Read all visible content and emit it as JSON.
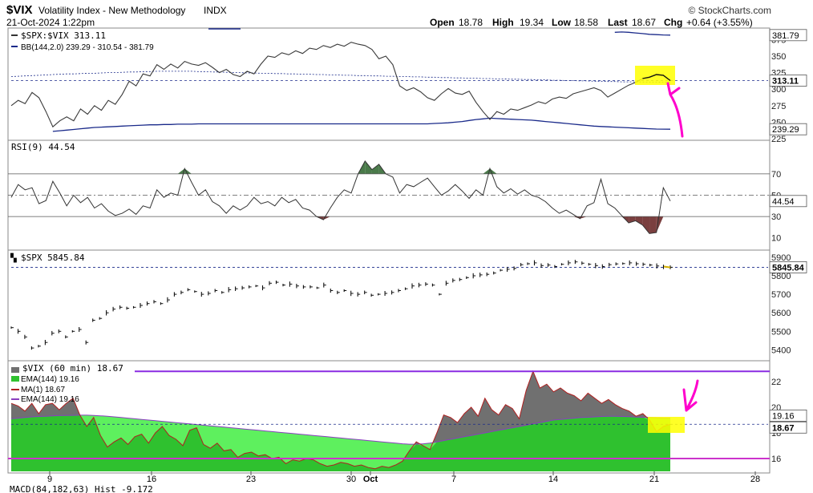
{
  "header": {
    "symbol": "$VIX",
    "name": "Volatility Index - New Methodology",
    "exchange": "INDX",
    "date": "21-Oct-2024 1:22pm",
    "brand": "© StockCharts.com",
    "quote": {
      "open_label": "Open",
      "open": "18.78",
      "high_label": "High",
      "high": "19.34",
      "low_label": "Low",
      "low": "18.58",
      "last_label": "Last",
      "last": "18.67",
      "chg_label": "Chg",
      "chg": "+0.64 (+3.55%)"
    }
  },
  "colors": {
    "ratio_line": "#3a3a3a",
    "bb_band": "#1a2a8a",
    "rsi_line": "#333333",
    "rsi_over": "#4a7a4a",
    "rsi_under": "#7a3f3f",
    "spx_bar": "#111111",
    "vix_area": "#707070",
    "ema_green": "#2fc12f",
    "ma_red": "#b02020",
    "ema_purple": "#8a3fbf",
    "h_purple": "#8a2be2",
    "h_magenta": "#cc33cc",
    "highlight": "#ffff00",
    "arrow": "#ff00cc"
  },
  "chart_data": [
    {
      "type": "line",
      "panel": "ratio",
      "legend": [
        "$SPX:$VIX 313.11",
        "BB(144,2.0) 239.29 - 310.54 - 381.79"
      ],
      "ylim": [
        225,
        390
      ],
      "y_ticks": [
        "375",
        "350",
        "325",
        "300",
        "275",
        "250",
        "225"
      ],
      "tags": [
        "381.79",
        "313.11",
        "239.29"
      ],
      "series": [
        {
          "name": "$SPX:$VIX",
          "values": [
            275,
            283,
            278,
            295,
            287,
            266,
            243,
            252,
            258,
            252,
            270,
            262,
            275,
            268,
            283,
            277,
            292,
            312,
            305,
            323,
            320,
            337,
            330,
            338,
            332,
            342,
            338,
            336,
            340,
            333,
            325,
            330,
            322,
            319,
            327,
            323,
            338,
            350,
            348,
            355,
            352,
            358,
            354,
            362,
            360,
            366,
            363,
            368,
            365,
            371,
            368,
            366,
            360,
            346,
            350,
            337,
            305,
            298,
            302,
            296,
            287,
            283,
            293,
            301,
            294,
            292,
            297,
            280,
            266,
            254,
            266,
            262,
            270,
            268,
            272,
            276,
            281,
            278,
            285,
            288,
            286,
            293,
            296,
            299,
            302,
            298,
            288,
            294,
            300,
            306,
            310,
            316,
            318,
            322,
            321,
            313
          ]
        },
        {
          "name": "BB upper",
          "values": [
            null,
            null,
            null,
            null,
            null,
            null,
            null,
            null,
            null,
            null,
            null,
            null,
            null,
            null,
            null,
            null,
            null,
            null,
            null,
            null,
            null,
            null,
            null,
            null,
            null,
            null,
            null,
            null,
            null,
            null,
            null,
            null,
            null,
            null,
            null,
            null,
            null,
            null,
            null,
            null,
            null,
            null,
            null,
            null,
            null,
            null,
            null,
            null,
            null,
            null,
            null,
            null,
            null,
            null,
            null,
            null,
            null,
            null,
            null,
            null,
            null,
            null,
            null,
            null,
            null,
            null,
            null,
            null,
            null,
            null,
            null,
            null,
            null,
            null,
            null,
            null,
            null,
            null,
            null,
            null,
            null,
            null,
            null,
            null,
            null,
            null,
            null,
            386,
            386.5,
            386,
            385,
            384,
            383,
            382.5,
            382,
            381.79
          ]
        },
        {
          "name": "BB middle",
          "values": [
            319,
            319.5,
            320,
            320.5,
            321,
            321.5,
            322,
            322.5,
            323,
            323,
            323.5,
            324,
            324,
            324.5,
            325,
            325,
            325.5,
            326,
            326,
            326.5,
            326.5,
            327,
            327,
            327,
            327,
            327,
            327,
            326.5,
            326.5,
            326,
            326,
            325.5,
            325,
            325,
            324.5,
            324.5,
            324,
            324,
            323.5,
            323.5,
            323,
            323,
            322.5,
            322.5,
            322,
            322,
            321.5,
            321.5,
            321,
            321,
            320.5,
            320.5,
            320,
            320,
            319.5,
            319.5,
            319,
            319,
            318.5,
            318.5,
            318,
            318,
            317.5,
            317.5,
            317,
            317,
            316.5,
            316.5,
            316,
            316,
            315.5,
            315.5,
            315,
            315,
            314.5,
            314.5,
            314,
            314,
            313.5,
            313.5,
            313,
            313,
            312.5,
            312.5,
            312,
            312,
            311.5,
            311.5,
            311,
            311,
            311,
            310.8,
            310.7,
            310.6,
            310.55,
            310.54
          ]
        },
        {
          "name": "BB lower",
          "values": [
            null,
            null,
            null,
            null,
            null,
            null,
            236,
            237,
            238,
            239,
            240,
            241,
            242,
            242.5,
            243,
            243.5,
            244,
            244.5,
            245,
            245.5,
            246,
            246,
            246.5,
            246.5,
            247,
            247,
            247,
            247.5,
            247.5,
            247.5,
            247.5,
            247.5,
            247.5,
            247.5,
            247.5,
            247.5,
            247.5,
            247.5,
            247.5,
            247.5,
            247.5,
            247.5,
            247.5,
            247.5,
            247.5,
            247.5,
            247.5,
            247.5,
            247.5,
            247.5,
            247.5,
            247.5,
            247.5,
            247.5,
            247.5,
            247.5,
            247.5,
            247.5,
            247.5,
            247.5,
            247.5,
            248,
            248.5,
            249,
            250,
            251,
            252.5,
            254,
            255,
            256,
            255.5,
            255,
            254.5,
            254,
            253.5,
            253,
            252,
            251,
            250,
            249,
            248,
            247,
            246,
            245,
            244,
            243.5,
            243,
            242.5,
            242,
            241.5,
            241,
            240.5,
            240,
            239.6,
            239.4,
            239.29
          ]
        }
      ]
    },
    {
      "type": "line",
      "panel": "rsi",
      "legend": [
        "RSI(9) 44.54"
      ],
      "ylim": [
        0,
        100
      ],
      "y_ticks": [
        "70",
        "50",
        "30",
        "10"
      ],
      "tags": [
        "44.54"
      ],
      "reference_lines": [
        70,
        50,
        30
      ],
      "series": [
        {
          "name": "RSI(9)",
          "values": [
            48,
            60,
            55,
            57,
            42,
            45,
            63,
            52,
            40,
            50,
            43,
            48,
            38,
            42,
            35,
            31,
            33,
            37,
            32,
            40,
            38,
            55,
            48,
            52,
            50,
            75,
            62,
            50,
            55,
            44,
            40,
            33,
            40,
            36,
            40,
            48,
            42,
            44,
            40,
            48,
            43,
            46,
            38,
            36,
            30,
            27,
            38,
            48,
            55,
            52,
            70,
            82,
            74,
            79,
            70,
            67,
            52,
            60,
            58,
            62,
            66,
            58,
            50,
            54,
            60,
            54,
            47,
            55,
            50,
            75,
            58,
            52,
            56,
            51,
            55,
            50,
            48,
            44,
            38,
            33,
            36,
            32,
            28,
            40,
            43,
            65,
            42,
            38,
            31,
            24,
            26,
            22,
            14,
            15,
            57,
            44.54
          ]
        }
      ]
    },
    {
      "type": "bar",
      "panel": "spx",
      "legend": [
        "$SPX 5845.84"
      ],
      "ylim": [
        5350,
        5930
      ],
      "y_ticks": [
        "5900",
        "5800",
        "5700",
        "5600",
        "5500",
        "5400"
      ],
      "tags": [
        "5845.84"
      ],
      "series": [
        {
          "name": "$SPX",
          "values": [
            5520,
            5500,
            5470,
            5410,
            5420,
            5440,
            5490,
            5500,
            5470,
            5500,
            5510,
            5440,
            5560,
            5570,
            5600,
            5620,
            5630,
            5625,
            5630,
            5640,
            5650,
            5660,
            5650,
            5670,
            5700,
            5710,
            5725,
            5715,
            5700,
            5705,
            5720,
            5710,
            5725,
            5730,
            5735,
            5740,
            5745,
            5735,
            5760,
            5765,
            5750,
            5755,
            5745,
            5740,
            5740,
            5735,
            5750,
            5720,
            5710,
            5720,
            5705,
            5700,
            5710,
            5695,
            5700,
            5705,
            5710,
            5720,
            5730,
            5745,
            5750,
            5755,
            5750,
            5700,
            5760,
            5775,
            5780,
            5790,
            5800,
            5805,
            5808,
            5815,
            5830,
            5835,
            5840,
            5860,
            5865,
            5870,
            5855,
            5858,
            5850,
            5862,
            5870,
            5875,
            5868,
            5862,
            5855,
            5850,
            5860,
            5864,
            5866,
            5870,
            5865,
            5862,
            5858,
            5853,
            5848,
            5845.84
          ]
        }
      ]
    },
    {
      "type": "area",
      "panel": "vix",
      "legend": [
        "$VIX (60 min) 18.67",
        "EMA(144) 19.16",
        "MA(1) 18.67",
        "EMA(144) 19.16"
      ],
      "ylim": [
        15,
        23.5
      ],
      "y_ticks": [
        "22",
        "20",
        "18",
        "16"
      ],
      "tags": [
        "19.16",
        "18.67"
      ],
      "reference_lines": [
        22.8,
        16
      ],
      "series": [
        {
          "name": "$VIX (60 min)",
          "values": [
            20.3,
            20.1,
            19.7,
            20.3,
            19.5,
            20.2,
            20.3,
            19.8,
            20.3,
            20.7,
            19.4,
            18.5,
            19.2,
            17.8,
            16.9,
            17.3,
            17.6,
            17.1,
            17.7,
            17.9,
            17.2,
            18.0,
            18.5,
            17.8,
            17.5,
            17.0,
            18.2,
            18.4,
            17.1,
            16.8,
            17.2,
            16.6,
            16.7,
            16.1,
            16.4,
            16.5,
            16.2,
            16.3,
            16.0,
            16.1,
            15.6,
            15.9,
            15.8,
            16.0,
            15.9,
            15.6,
            15.4,
            15.5,
            15.7,
            15.6,
            15.4,
            15.5,
            15.3,
            15.2,
            15.4,
            15.3,
            15.5,
            15.8,
            16.6,
            17.3,
            17.0,
            16.7,
            18.0,
            19.4,
            19.2,
            18.8,
            19.5,
            20.0,
            19.3,
            20.7,
            19.8,
            19.4,
            20.2,
            19.9,
            19.1,
            21.3,
            22.8,
            21.5,
            21.8,
            21.2,
            21.5,
            21.1,
            20.9,
            20.5,
            21.1,
            20.7,
            20.3,
            20.6,
            20.2,
            19.9,
            19.7,
            19.3,
            19.5,
            19.0,
            18.1,
            18.5,
            18.67
          ]
        },
        {
          "name": "EMA(144)",
          "values": [
            19.1,
            19.15,
            19.2,
            19.25,
            19.28,
            19.3,
            19.33,
            19.35,
            19.36,
            19.37,
            19.38,
            19.38,
            19.36,
            19.33,
            19.3,
            19.25,
            19.2,
            19.15,
            19.1,
            19.05,
            19.0,
            18.95,
            18.9,
            18.85,
            18.8,
            18.75,
            18.7,
            18.65,
            18.6,
            18.55,
            18.5,
            18.45,
            18.4,
            18.35,
            18.3,
            18.25,
            18.2,
            18.15,
            18.1,
            18.05,
            18.0,
            17.95,
            17.9,
            17.85,
            17.8,
            17.75,
            17.7,
            17.65,
            17.6,
            17.55,
            17.5,
            17.45,
            17.4,
            17.35,
            17.3,
            17.25,
            17.2,
            17.15,
            17.12,
            17.12,
            17.15,
            17.2,
            17.3,
            17.4,
            17.5,
            17.6,
            17.7,
            17.8,
            17.9,
            18.0,
            18.1,
            18.2,
            18.3,
            18.4,
            18.5,
            18.6,
            18.7,
            18.8,
            18.9,
            19.0,
            19.05,
            19.1,
            19.15,
            19.2,
            19.22,
            19.25,
            19.28,
            19.3,
            19.3,
            19.28,
            19.26,
            19.24,
            19.22,
            19.2,
            19.18,
            19.16,
            19.16
          ]
        }
      ]
    }
  ],
  "x_axis": {
    "labels": [
      "9",
      "16",
      "23",
      "30",
      "Oct",
      "7",
      "14",
      "21",
      "28"
    ],
    "bottom_cut_label": "MACD(84,182,63) Hist -9.172"
  }
}
